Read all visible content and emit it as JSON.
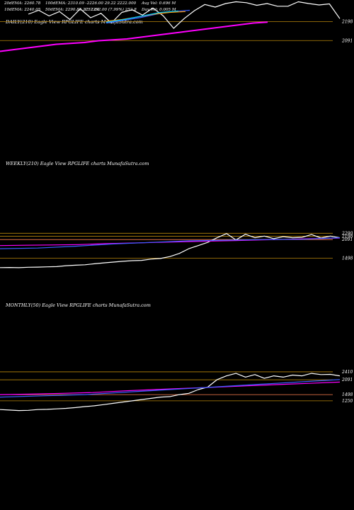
{
  "header": {
    "row1": [
      "20dEMA: 2260.78",
      "100dEMA: 2310.09",
      "–2226.00  29.22  2222.000",
      "Avg Vol: 0.696  M"
    ],
    "row2": [
      "10dEMA: 2240.05",
      "50dEMA: 2290.85  2252.64",
      "C: 2252.00  (7.99%) 252.8",
      "Day Vol: 0.005  M"
    ]
  },
  "chart_data": [
    {
      "type": "line",
      "title": "DAILY(210) Eagle  View  RPGLIFE charts MunafaSutra.com",
      "price_labels": [
        "2198",
        "2091"
      ],
      "series": [
        {
          "color": "#ffffff",
          "values": [
            2240,
            2262,
            2230,
            2255,
            2210,
            2270,
            2220,
            2245,
            2190,
            2250,
            2265,
            2235,
            2275,
            2230,
            2160,
            2215,
            2260,
            2295,
            2280,
            2300,
            2310,
            2305,
            2290,
            2300,
            2285,
            2285,
            2310,
            2300,
            2292,
            2298,
            2215
          ]
        },
        {
          "color": "#ff00ff",
          "values": [
            2030,
            2040,
            2050,
            2060,
            2070,
            2075,
            2080,
            2090,
            2095,
            2100,
            2110,
            2120,
            2130,
            2140,
            2150,
            2160,
            2170,
            2180,
            2190,
            2195
          ]
        },
        {
          "color": "#3a5fff",
          "values": [
            2190,
            2205,
            2220,
            2240,
            2255,
            2262
          ]
        },
        {
          "color": "#ff9900",
          "values": [
            2200,
            2210,
            2225,
            2240,
            2250,
            2255
          ]
        },
        {
          "color": "#00c8ff",
          "values": [
            2195,
            2210,
            2230,
            2250,
            2258
          ]
        }
      ]
    },
    {
      "type": "line",
      "title": "WEEKLY(210) Eagle  View  RPGLIFE charts MunafaSutra.com",
      "price_labels": [
        "2290",
        "2198",
        "2091",
        "1498"
      ],
      "series": [
        {
          "color": "#ffffff",
          "values": [
            1200,
            1205,
            1198,
            1210,
            1215,
            1225,
            1230,
            1260,
            1275,
            1290,
            1320,
            1350,
            1375,
            1400,
            1420,
            1430,
            1470,
            1490,
            1550,
            1650,
            1800,
            1900,
            2000,
            2150,
            2280,
            2080,
            2260,
            2150,
            2200,
            2120,
            2180,
            2150,
            2160,
            2250,
            2140,
            2200,
            2150
          ]
        },
        {
          "color": "#ff00ff",
          "values": [
            1900,
            1910,
            1920,
            1930,
            1960,
            1980,
            2000,
            2020,
            2040,
            2060,
            2080,
            2100,
            2120,
            2140
          ]
        },
        {
          "color": "#3a5fff",
          "values": [
            1800,
            1820,
            1880,
            1950,
            2000,
            2050,
            2070,
            2090,
            2100,
            2150
          ]
        }
      ]
    },
    {
      "type": "line",
      "title": "MONTHLY(50) Eagle  View  RPGLIFE charts MunafaSutra.com",
      "price_labels": [
        "2410",
        "2091",
        "1498",
        "1250"
      ],
      "series": [
        {
          "color": "#ffffff",
          "values": [
            900,
            880,
            860,
            870,
            900,
            910,
            930,
            950,
            980,
            1020,
            1050,
            1100,
            1150,
            1200,
            1250,
            1300,
            1350,
            1400,
            1420,
            1500,
            1550,
            1700,
            1800,
            2100,
            2250,
            2350,
            2200,
            2300,
            2150,
            2250,
            2200,
            2280,
            2250,
            2350,
            2300,
            2310,
            2250
          ]
        },
        {
          "color": "#ff00ff",
          "values": [
            1500,
            1520,
            1550,
            1580,
            1650,
            1700,
            1750,
            1800,
            1850,
            1900,
            1950,
            2000
          ]
        },
        {
          "color": "#3a5fff",
          "values": [
            1400,
            1450,
            1500,
            1600,
            1700,
            1800,
            1900,
            2000,
            2100
          ]
        }
      ]
    }
  ],
  "colors": {
    "background": "#000000",
    "price_line": "#ffffff",
    "ema_long": "#ff00ff",
    "ema_short": "#3a5fff",
    "level": "#b8860b"
  }
}
